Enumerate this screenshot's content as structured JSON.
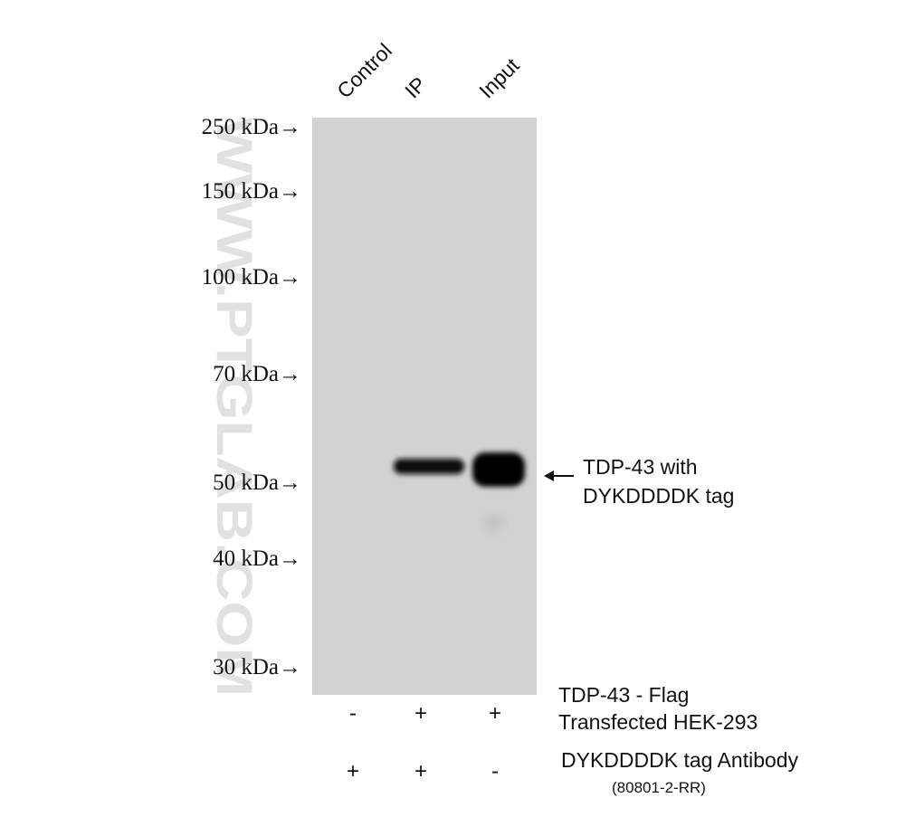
{
  "lanes": [
    "Control",
    "IP",
    "Input"
  ],
  "markers": [
    "250 kDa→",
    "150 kDa→",
    "100 kDa→",
    "70 kDa→",
    "50 kDa→",
    "40 kDa→",
    "30 kDa→"
  ],
  "annotation": {
    "line1": "TDP-43 with",
    "line2": "DYKDDDDK tag"
  },
  "conditions": [
    {
      "label": "TDP-43 - Flag",
      "label2": "Transfected HEK-293",
      "signs": [
        "-",
        "+",
        "+"
      ]
    },
    {
      "label": "DYKDDDDK tag Antibody",
      "label2": "(80801-2-RR)",
      "signs": [
        "+",
        "+",
        "-"
      ]
    }
  ],
  "watermark": "WWW.PTGLAB.COM"
}
